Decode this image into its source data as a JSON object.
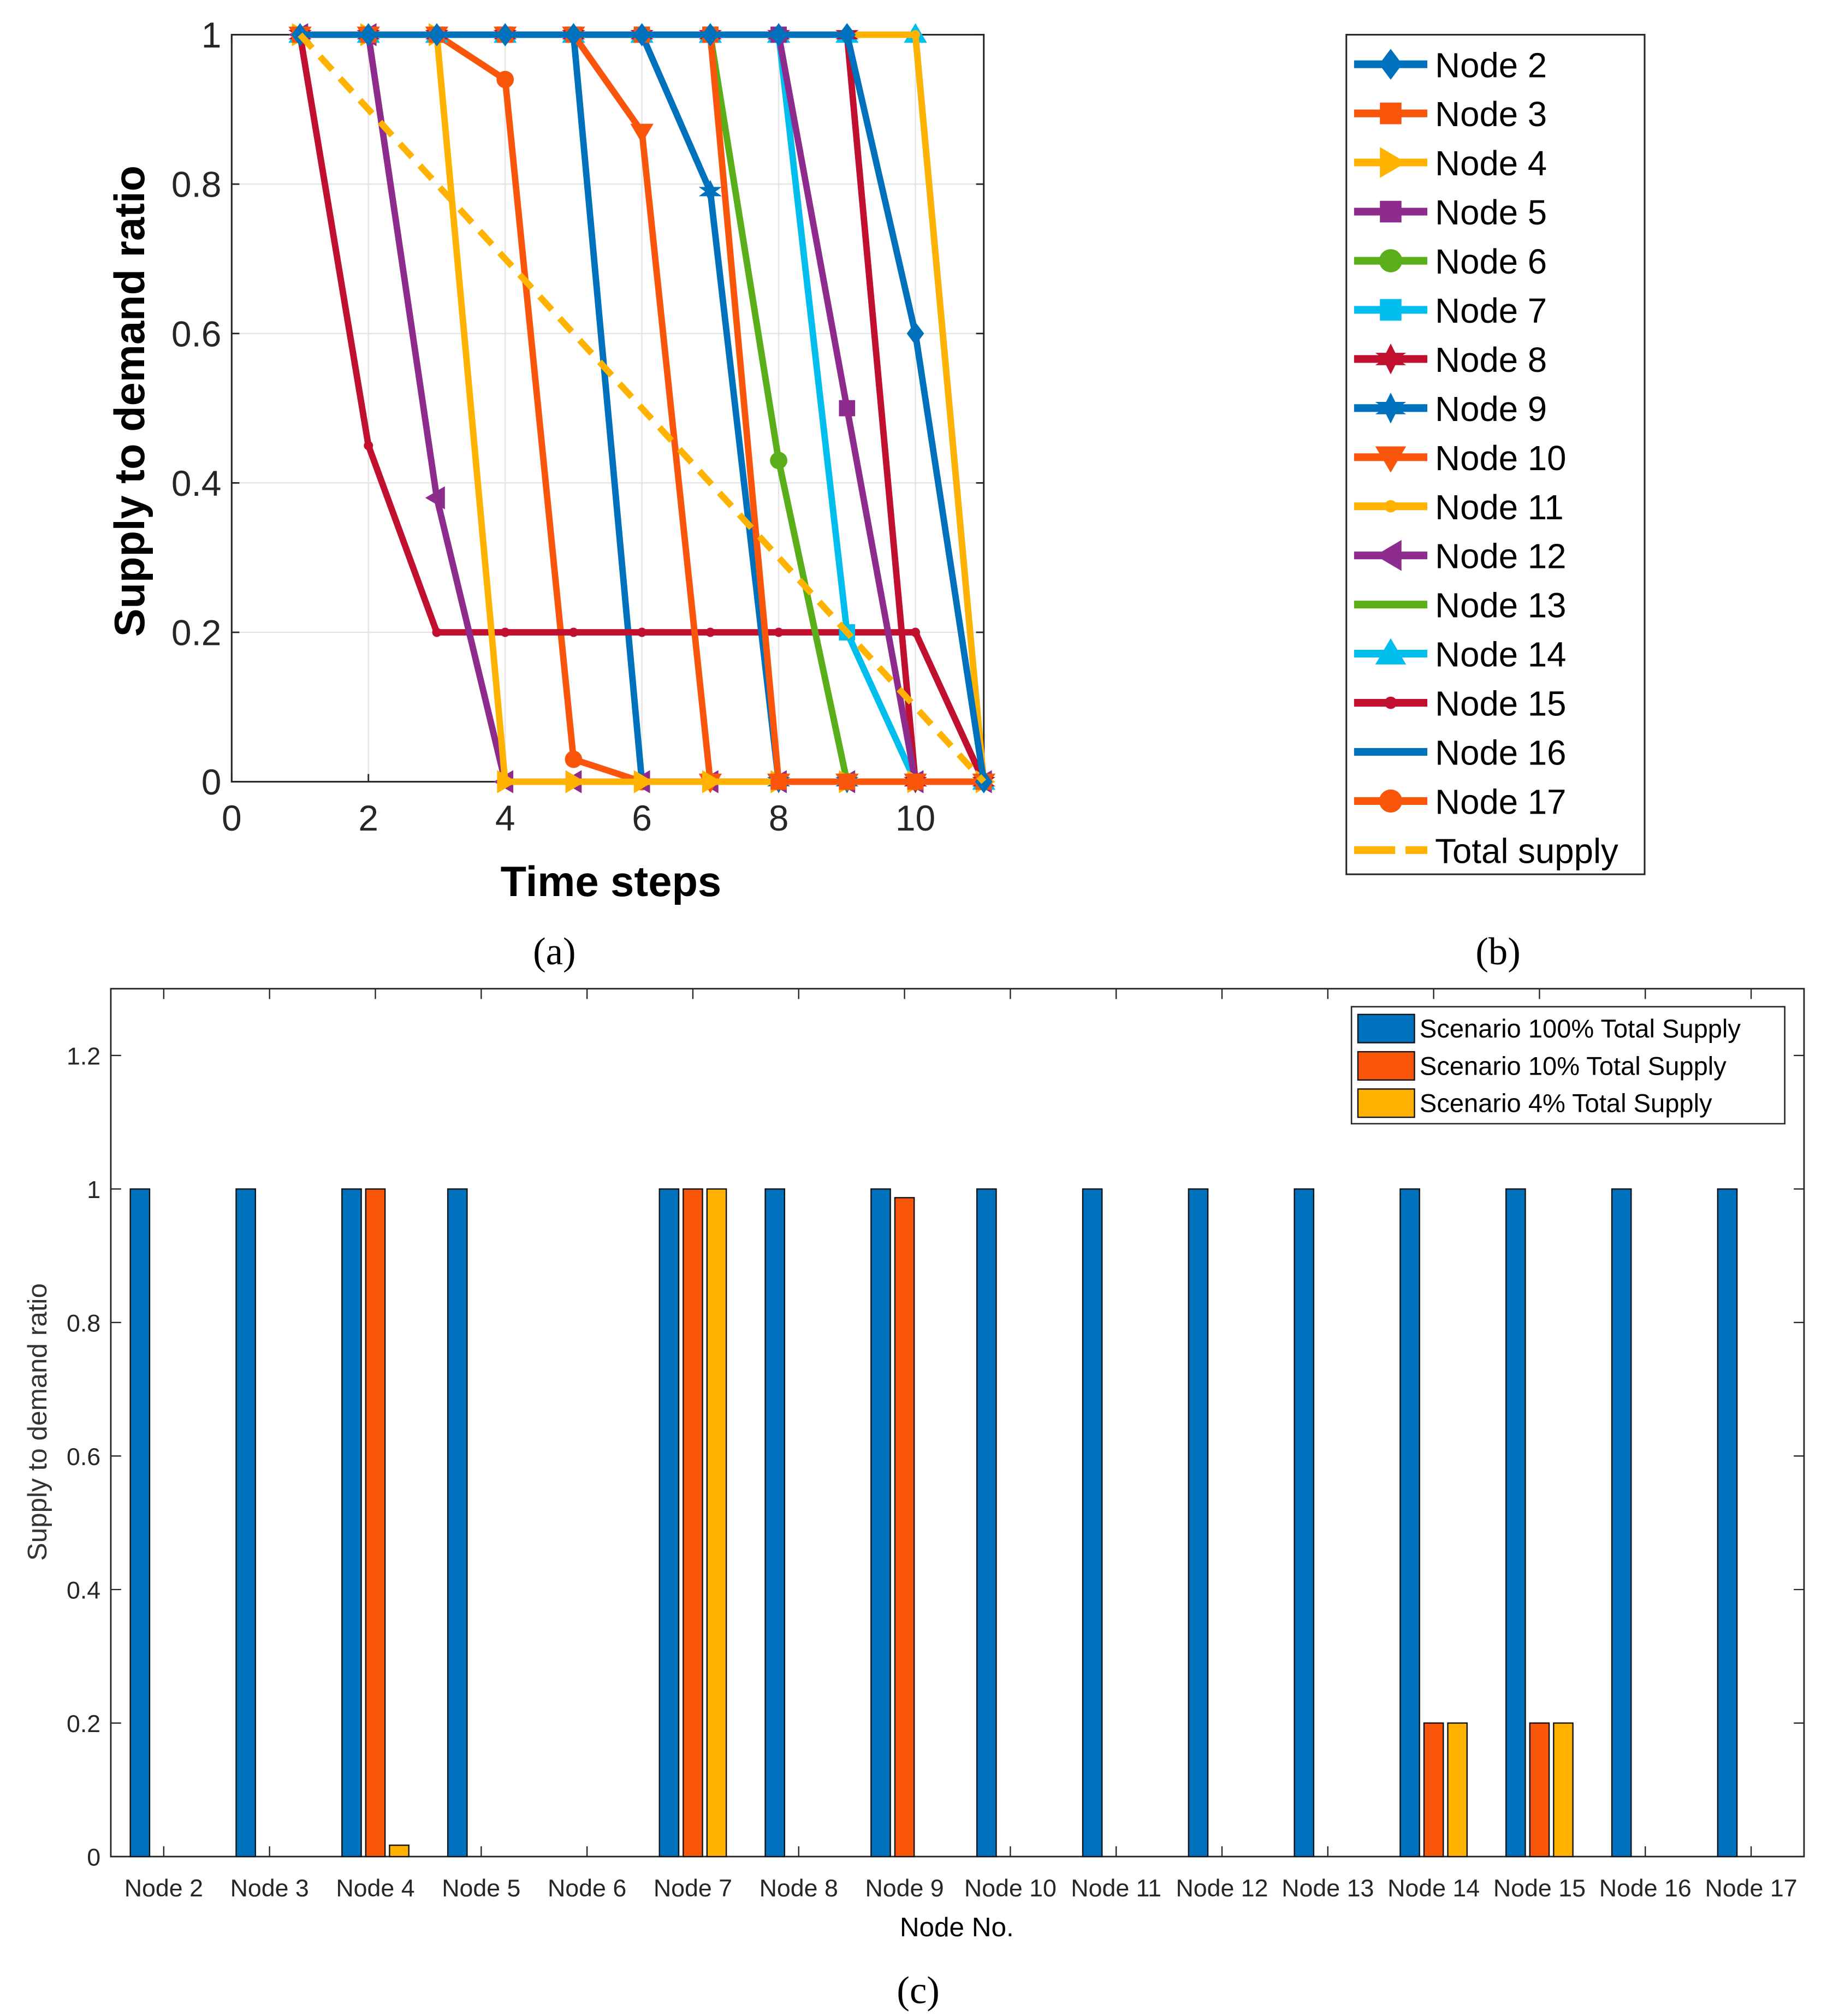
{
  "captions": {
    "a": "(a)",
    "b": "(b)",
    "c": "(c)"
  },
  "chart_data": [
    {
      "type": "line",
      "title": "",
      "xlabel": "Time steps",
      "ylabel": "Supply to demand ratio",
      "xlim": [
        0,
        11
      ],
      "ylim": [
        0,
        1
      ],
      "xticks": [
        "0",
        "2",
        "4",
        "6",
        "8",
        "10"
      ],
      "yticks": [
        "0",
        "0.2",
        "0.4",
        "0.6",
        "0.8",
        "1"
      ],
      "grid": true,
      "legend_placement": "outside-right",
      "x": [
        1,
        2,
        3,
        4,
        5,
        6,
        7,
        8,
        9,
        10,
        11
      ],
      "series": [
        {
          "name": "Node 2",
          "color": "#0072BD",
          "marker": "diamond",
          "values": [
            1,
            1,
            1,
            1,
            1,
            1,
            1,
            1,
            1,
            0.6,
            0
          ]
        },
        {
          "name": "Node 3",
          "color": "#F9560C",
          "marker": "square",
          "values": [
            1,
            1,
            1,
            1,
            1,
            1,
            1,
            0,
            0,
            0,
            0
          ]
        },
        {
          "name": "Node 4",
          "color": "#FFB200",
          "marker": "tri-right",
          "values": [
            1,
            1,
            1,
            0,
            0,
            0,
            0,
            0,
            0,
            0,
            0
          ]
        },
        {
          "name": "Node 5",
          "color": "#8E2C8E",
          "marker": "square",
          "values": [
            1,
            1,
            1,
            1,
            1,
            1,
            1,
            1,
            0.5,
            0,
            0
          ]
        },
        {
          "name": "Node 6",
          "color": "#5AAE1A",
          "marker": "circle",
          "values": [
            1,
            1,
            1,
            1,
            1,
            1,
            1,
            0.43,
            0,
            0,
            0
          ]
        },
        {
          "name": "Node 7",
          "color": "#00BEEE",
          "marker": "square",
          "values": [
            1,
            1,
            1,
            1,
            1,
            1,
            1,
            1,
            0.2,
            0,
            0
          ]
        },
        {
          "name": "Node 8",
          "color": "#C00F2F",
          "marker": "star",
          "values": [
            1,
            1,
            1,
            1,
            1,
            1,
            1,
            1,
            1,
            0,
            0
          ]
        },
        {
          "name": "Node 9",
          "color": "#0072BD",
          "marker": "star",
          "values": [
            1,
            1,
            1,
            1,
            1,
            1,
            0.79,
            0,
            0,
            0,
            0
          ]
        },
        {
          "name": "Node 10",
          "color": "#F9560C",
          "marker": "tri-down",
          "values": [
            1,
            1,
            1,
            1,
            1,
            0.87,
            0,
            0,
            0,
            0,
            0
          ]
        },
        {
          "name": "Node 11",
          "color": "#FFB200",
          "marker": "dot",
          "values": [
            1,
            1,
            1,
            1,
            1,
            1,
            1,
            1,
            1,
            1,
            0
          ]
        },
        {
          "name": "Node 12",
          "color": "#8E2C8E",
          "marker": "tri-left",
          "values": [
            1,
            1,
            0.38,
            0,
            0,
            0,
            0,
            0,
            0,
            0,
            0
          ]
        },
        {
          "name": "Node 13",
          "color": "#5AAE1A",
          "marker": "none",
          "values": [
            1,
            1,
            1,
            1,
            1,
            1,
            1,
            0.43,
            0,
            0,
            0
          ]
        },
        {
          "name": "Node 14",
          "color": "#00BEEE",
          "marker": "tri-up",
          "values": [
            1,
            1,
            1,
            1,
            1,
            1,
            1,
            1,
            1,
            1,
            0
          ]
        },
        {
          "name": "Node 15",
          "color": "#C00F2F",
          "marker": "dot",
          "values": [
            1,
            0.45,
            0.2,
            0.2,
            0.2,
            0.2,
            0.2,
            0.2,
            0.2,
            0.2,
            0
          ]
        },
        {
          "name": "Node 16",
          "color": "#0072BD",
          "marker": "none",
          "values": [
            1,
            1,
            1,
            1,
            1,
            0,
            0,
            0,
            0,
            0,
            0
          ]
        },
        {
          "name": "Node 17",
          "color": "#F9560C",
          "marker": "circle",
          "values": [
            1,
            1,
            1,
            0.94,
            0.03,
            0,
            0,
            0,
            0,
            0,
            0
          ]
        },
        {
          "name": "Total supply",
          "color": "#FFB200",
          "marker": "none",
          "dashed": true,
          "values": [
            1,
            0.9,
            0.8,
            0.7,
            0.6,
            0.5,
            0.4,
            0.3,
            0.2,
            0.1,
            0
          ]
        }
      ]
    },
    {
      "type": "bar",
      "title": "",
      "xlabel": "Node No.",
      "ylabel": "Supply to demand ratio",
      "ylim": [
        0,
        1.3
      ],
      "yticks": [
        "0",
        "0.2",
        "0.4",
        "0.6",
        "0.8",
        "1",
        "1.2"
      ],
      "legend_placement": "top-right",
      "categories": [
        "Node 2",
        "Node 3",
        "Node 4",
        "Node 5",
        "Node 6",
        "Node 7",
        "Node 8",
        "Node 9",
        "Node 10",
        "Node 11",
        "Node 12",
        "Node 13",
        "Node 14",
        "Node 15",
        "Node 16",
        "Node 17"
      ],
      "series": [
        {
          "name": "Scenario 100% Total Supply",
          "color": "#0072BD",
          "values": [
            1,
            1,
            1,
            1,
            0,
            1,
            1,
            1,
            1,
            1,
            1,
            1,
            1,
            1,
            1,
            1
          ]
        },
        {
          "name": "Scenario 10% Total Supply",
          "color": "#F9560C",
          "values": [
            0,
            0,
            1,
            0,
            0,
            1,
            0,
            0.987,
            0,
            0,
            0,
            0,
            0.2,
            0.2,
            0,
            0
          ]
        },
        {
          "name": "Scenario 4% Total Supply",
          "color": "#FFB200",
          "values": [
            0,
            0,
            0.017,
            0,
            0,
            1,
            0,
            0,
            0,
            0,
            0,
            0,
            0.2,
            0.2,
            0,
            0
          ]
        }
      ]
    }
  ]
}
